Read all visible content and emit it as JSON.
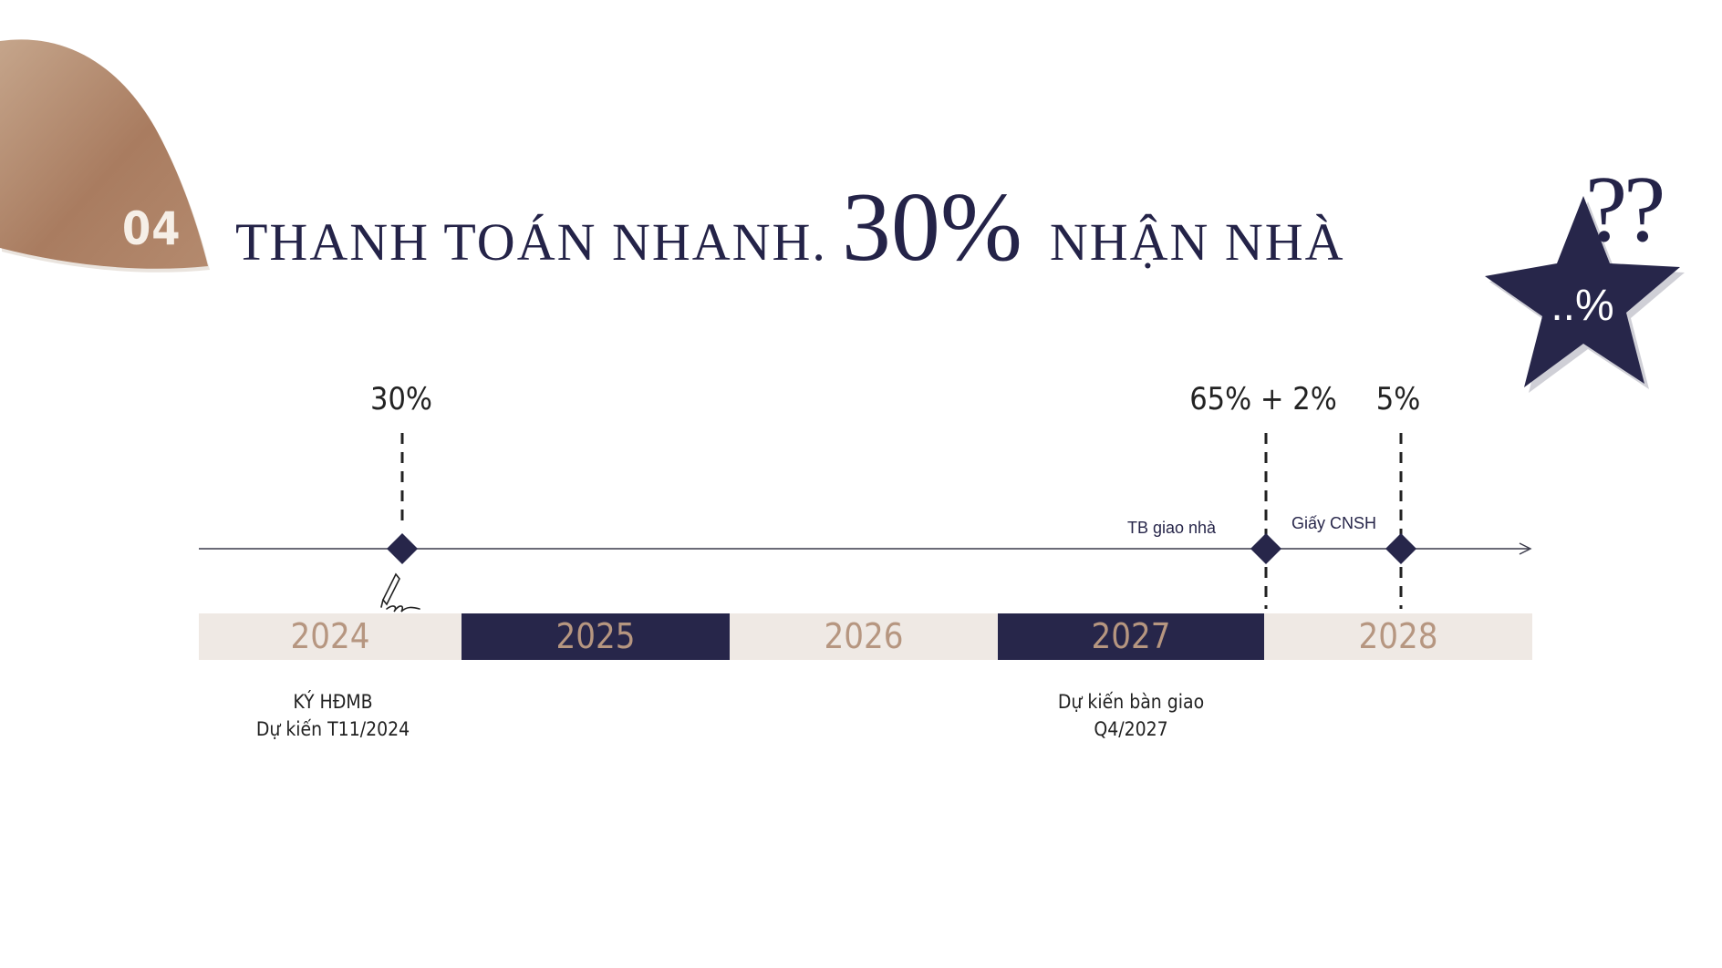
{
  "section_number": "04",
  "title": {
    "part1": "THANH TOÁN NHANH.",
    "part2": "30%",
    "part3": "NHẬN NHÀ"
  },
  "star": {
    "label": "..%",
    "question_marks": "??"
  },
  "milestones": [
    {
      "percent": "30%"
    },
    {
      "percent": "65% + 2%",
      "label": "TB giao nhà"
    },
    {
      "percent": "5%",
      "label": "Giấy CNSH"
    }
  ],
  "years": [
    "2024",
    "2025",
    "2026",
    "2027",
    "2028"
  ],
  "captions": [
    {
      "line1": "KÝ HĐMB",
      "line2": "Dự kiến T11/2024"
    },
    {
      "line1": "Dự kiến bàn giao",
      "line2": "Q4/2027"
    }
  ],
  "colors": {
    "navy": "#27264a",
    "bronze": "#b08a6e",
    "beige": "#efe9e4",
    "year_text": "#b69680"
  }
}
